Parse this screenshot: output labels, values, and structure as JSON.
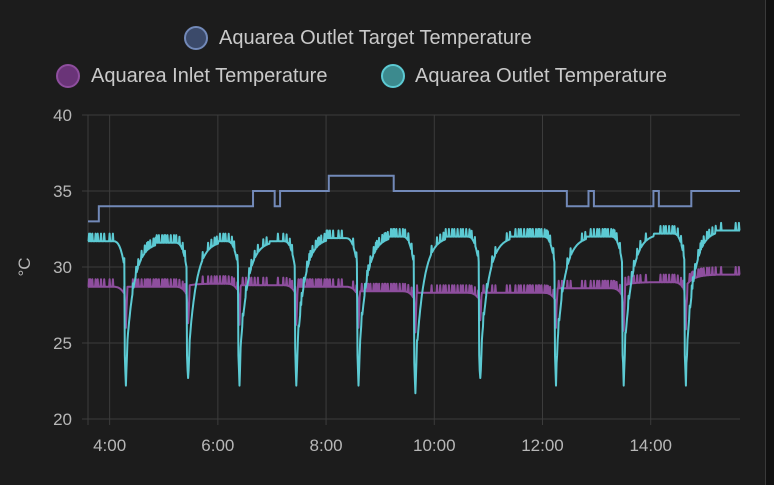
{
  "chart_data": {
    "type": "line",
    "title": "",
    "xlabel": "",
    "ylabel": "°C",
    "xlim": [
      3.6,
      15.65
    ],
    "ylim": [
      20,
      40
    ],
    "x_ticks": [
      {
        "value": 4,
        "label": "4:00"
      },
      {
        "value": 6,
        "label": "6:00"
      },
      {
        "value": 8,
        "label": "8:00"
      },
      {
        "value": 10,
        "label": "10:00"
      },
      {
        "value": 12,
        "label": "12:00"
      },
      {
        "value": 14,
        "label": "14:00"
      }
    ],
    "y_ticks": [
      20,
      25,
      30,
      35,
      40
    ],
    "grid": true,
    "legend_position": "top",
    "series": [
      {
        "name": "Aquarea Outlet Target Temperature",
        "color": "#7289b8",
        "fill": "#3b4a6a",
        "step": true,
        "points": [
          [
            3.6,
            33
          ],
          [
            3.8,
            34
          ],
          [
            6.65,
            35
          ],
          [
            7.05,
            34
          ],
          [
            7.15,
            35
          ],
          [
            8.05,
            36
          ],
          [
            9.25,
            35
          ],
          [
            12.45,
            34
          ],
          [
            12.85,
            35
          ],
          [
            12.95,
            34
          ],
          [
            14.05,
            35
          ],
          [
            14.15,
            34
          ],
          [
            14.75,
            35
          ],
          [
            15.65,
            35
          ]
        ]
      },
      {
        "name": "Aquarea Inlet Temperature",
        "color": "#8e4e9e",
        "fill": "#6a3478",
        "step": false,
        "base": [
          28.7,
          28.7,
          28.9,
          28.8,
          28.7,
          28.4,
          28.3,
          28.3,
          28.6,
          29.0,
          29.5,
          29.7
        ],
        "dip_min": [
          26.0,
          25.8,
          26.2,
          26.2,
          26.0,
          25.7,
          26.0,
          26.0,
          25.8,
          25.9,
          26.0,
          26.3
        ]
      },
      {
        "name": "Aquarea Outlet Temperature",
        "color": "#5ccad3",
        "fill": "#3c8a8e",
        "step": false,
        "base": [
          31.7,
          31.6,
          31.7,
          31.7,
          31.9,
          32.0,
          32.0,
          32.0,
          32.0,
          32.2,
          32.4,
          32.5
        ],
        "dip_min": [
          22.2,
          22.2,
          22.2,
          22.2,
          22.2,
          21.7,
          22.2,
          22.2,
          22.2,
          22.2,
          22.2,
          22.4
        ]
      }
    ],
    "cycle_dips_x": [
      4.3,
      5.45,
      6.4,
      7.45,
      8.6,
      9.65,
      10.85,
      12.25,
      13.5,
      14.65
    ]
  }
}
